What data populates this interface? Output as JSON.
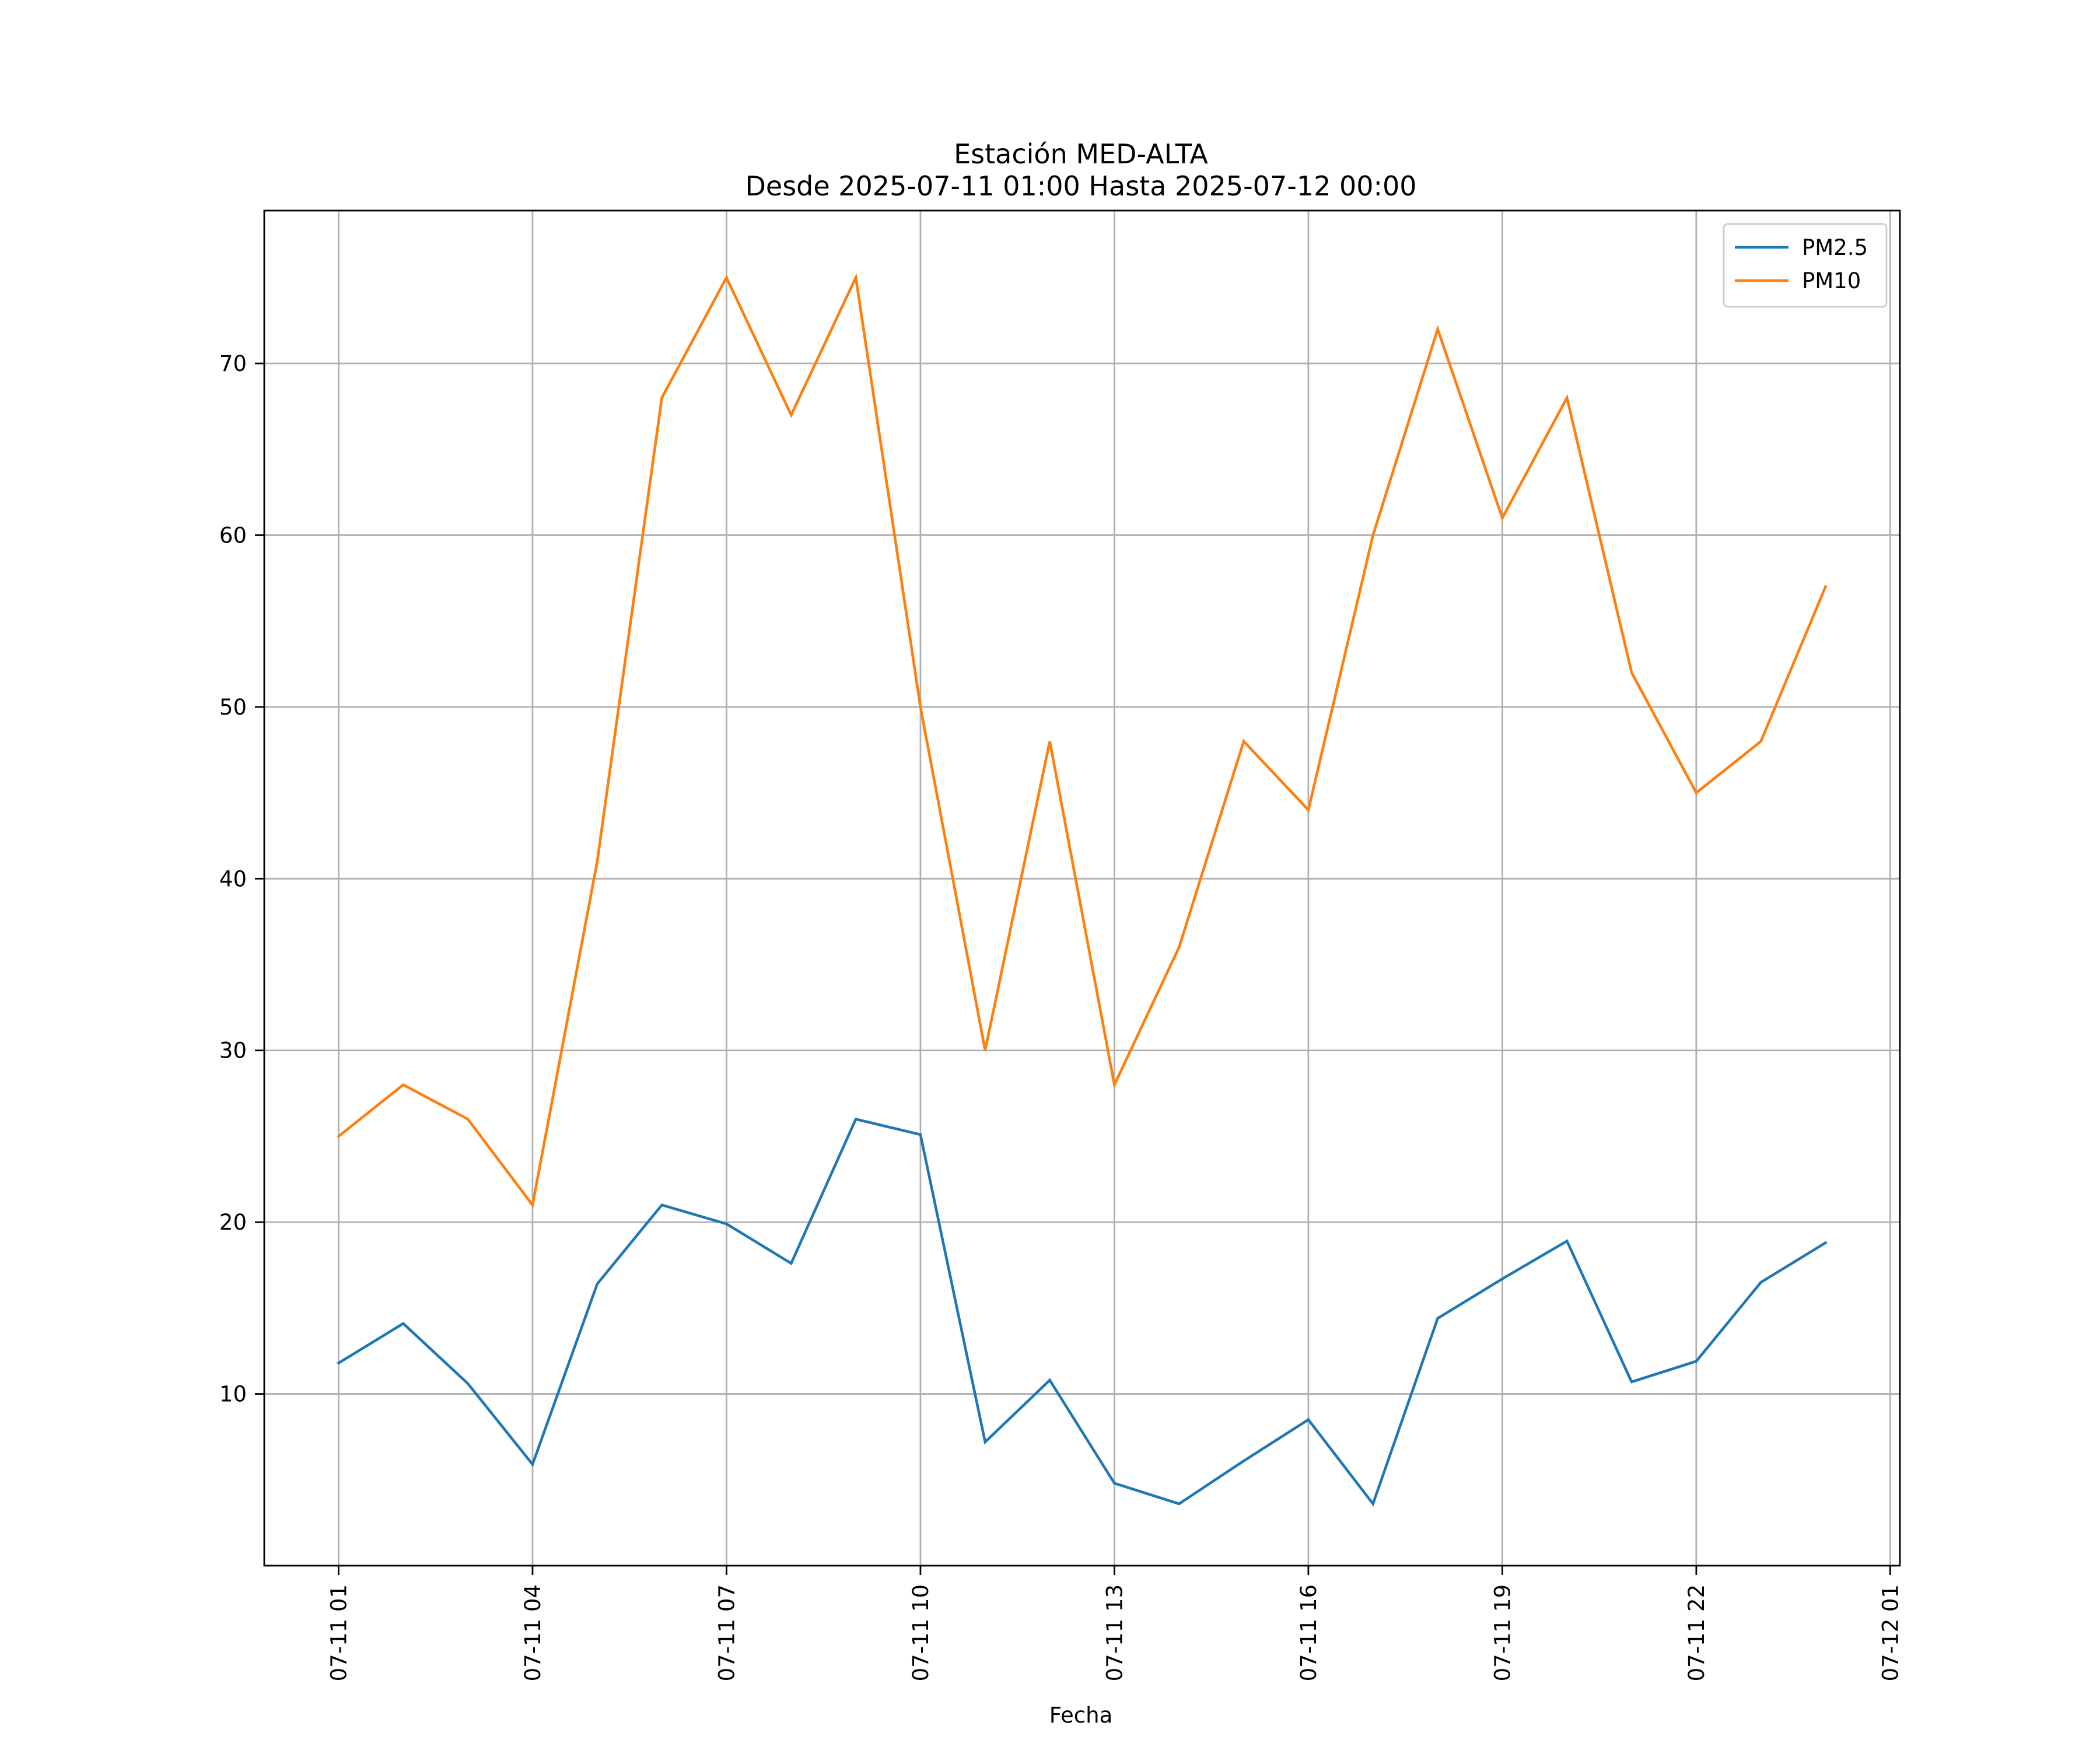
{
  "chart_data": {
    "type": "line",
    "title": "Estación MED-ALTA",
    "subtitle": "Desde 2025-07-11 01:00 Hasta 2025-07-12 00:00",
    "xlabel": "Fecha",
    "ylabel": "",
    "grid": true,
    "legend_position": "top-right",
    "x": [
      "2025-07-11 01:00",
      "2025-07-11 02:00",
      "2025-07-11 03:00",
      "2025-07-11 04:00",
      "2025-07-11 05:00",
      "2025-07-11 06:00",
      "2025-07-11 07:00",
      "2025-07-11 08:00",
      "2025-07-11 09:00",
      "2025-07-11 10:00",
      "2025-07-11 11:00",
      "2025-07-11 12:00",
      "2025-07-11 13:00",
      "2025-07-11 14:00",
      "2025-07-11 15:00",
      "2025-07-11 16:00",
      "2025-07-11 17:00",
      "2025-07-11 18:00",
      "2025-07-11 19:00",
      "2025-07-11 20:00",
      "2025-07-11 21:00",
      "2025-07-11 22:00",
      "2025-07-11 23:00",
      "2025-07-12 00:00"
    ],
    "xlim": [
      "2025-07-10 23:51",
      "2025-07-12 01:09"
    ],
    "x_ticks": [
      "2025-07-11 01:00",
      "2025-07-11 04:00",
      "2025-07-11 07:00",
      "2025-07-11 10:00",
      "2025-07-11 13:00",
      "2025-07-11 16:00",
      "2025-07-11 19:00",
      "2025-07-11 22:00",
      "2025-07-12 01:00"
    ],
    "x_tick_labels": [
      "07-11 01",
      "07-11 04",
      "07-11 07",
      "07-11 10",
      "07-11 13",
      "07-11 16",
      "07-11 19",
      "07-11 22",
      "07-12 01"
    ],
    "ylim": [
      0,
      78.9
    ],
    "y_ticks": [
      10,
      20,
      30,
      40,
      50,
      60,
      70
    ],
    "y_tick_labels": [
      "10",
      "20",
      "30",
      "40",
      "50",
      "60",
      "70"
    ],
    "series": [
      {
        "name": "PM2.5",
        "color": "#1f77b4",
        "values": [
          11.8,
          14.1,
          10.6,
          5.9,
          16.4,
          21.0,
          19.9,
          17.6,
          26.0,
          25.1,
          7.2,
          10.8,
          4.8,
          3.6,
          6.1,
          8.5,
          3.6,
          14.4,
          16.7,
          18.9,
          10.7,
          11.9,
          16.5,
          18.8
        ]
      },
      {
        "name": "PM10",
        "color": "#ff7f0e",
        "values": [
          25,
          28,
          26,
          21,
          41,
          68,
          75,
          67,
          75,
          50,
          30,
          48,
          28,
          36,
          48,
          44,
          60,
          72,
          61,
          68,
          52,
          45,
          48,
          57
        ]
      }
    ]
  }
}
